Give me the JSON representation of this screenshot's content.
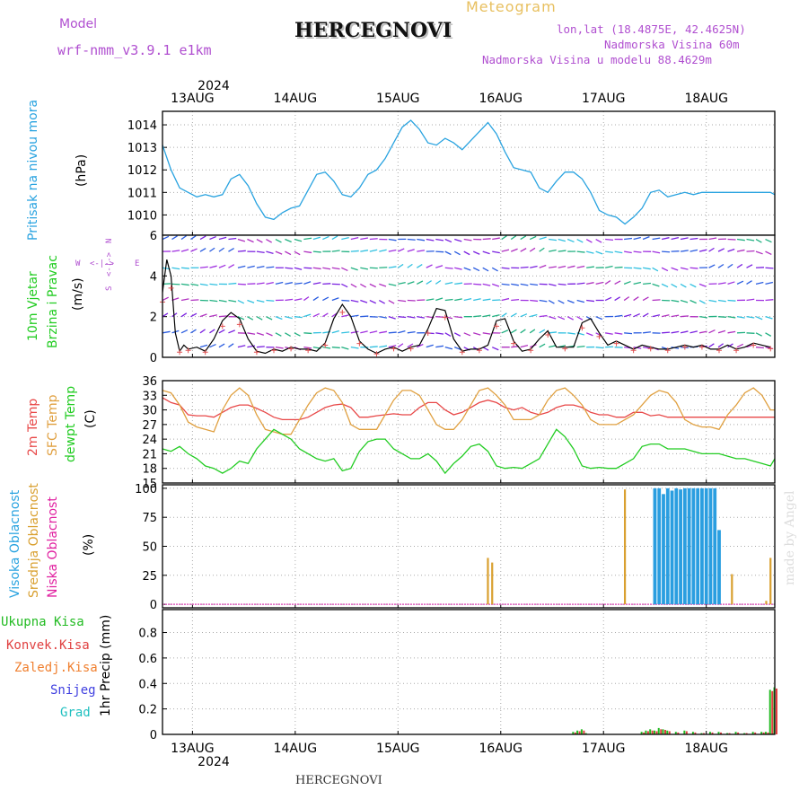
{
  "header": {
    "model_label": "Model",
    "model_value": "wrf-nmm_v3.9.1 e1km",
    "station": "HERCEGNOVI",
    "chart_kind": "Meteogram",
    "lonlat": "lon,lat (18.4875E, 42.4625N)",
    "elevation": "Nadmorska Visina 60m",
    "model_elevation": "Nadmorska Visina u modelu 88.4629m"
  },
  "footer": {
    "station": "HERCEGNOVI",
    "credit": "made by Angel"
  },
  "colors": {
    "pressure": "#29a3e0",
    "wind_black": "#000000",
    "wind_red": "#e05050",
    "t2m": "#e84848",
    "sfc": "#e0a040",
    "dew": "#22cc22",
    "cloud_high": "#2a9ee0",
    "cloud_mid": "#d9a030",
    "cloud_low": "#e020a0",
    "precip_total": "#22bb22",
    "precip_conv": "#e04040",
    "snow": "#4040e0",
    "hail": "#20c0c0",
    "grid": "#aaaaaa"
  },
  "panel_labels": {
    "pressure": {
      "name": "Pritisak na nivou mora",
      "unit": "(hPa)"
    },
    "wind": {
      "name1": "10m Vjetar",
      "name2": "Brzina i Pravac",
      "unit": "(m/s)",
      "compass_n": "N",
      "compass_s": "S",
      "compass_w": "W",
      "compass_e": "E",
      "compass_arrow_h": "<-|->",
      "compass_arrow_v": "<-|->"
    },
    "temp": {
      "t2m": "2m Temp",
      "sfc": "SFC Temp",
      "dew": "dewpt Temp",
      "unit": "(C)"
    },
    "cloud": {
      "high": "Visoka Oblacnost",
      "mid": "Srednja Oblacnost",
      "low": "Niska Oblacnost",
      "unit": "(%)"
    },
    "precip": {
      "total": "Ukupna Kisa",
      "conv": "Konvek.Kisa",
      "frozen": "Zaledj.Kisa",
      "snow": "Snijeg",
      "hail": "Grad",
      "unit": "1hr Precip (mm)"
    }
  },
  "time_axis": {
    "year": "2024",
    "days": [
      "13AUG",
      "14AUG",
      "15AUG",
      "16AUG",
      "17AUG",
      "18AUG"
    ],
    "start_hour": -7,
    "end_hour": 136
  },
  "chart_data": [
    {
      "type": "line",
      "title": "Pritisak na nivou mora",
      "ylabel": "(hPa)",
      "ylim": [
        1009.1,
        1014.6
      ],
      "yticks": [
        1010,
        1011,
        1012,
        1013,
        1014
      ],
      "x_hours_from_13AUG_00": [
        -7,
        -5,
        -3,
        -1,
        1,
        3,
        5,
        7,
        9,
        11,
        13,
        15,
        17,
        19,
        21,
        23,
        25,
        27,
        29,
        31,
        33,
        35,
        37,
        39,
        41,
        43,
        45,
        47,
        49,
        51,
        53,
        55,
        57,
        59,
        61,
        63,
        65,
        67,
        69,
        71,
        73,
        75,
        77,
        79,
        81,
        83,
        85,
        87,
        89,
        91,
        93,
        95,
        97,
        99,
        101,
        103,
        105,
        107,
        109,
        111,
        113,
        115,
        117,
        119,
        121,
        123,
        125,
        127,
        129,
        131,
        133,
        135,
        136
      ],
      "series": [
        {
          "values": [
            1013.1,
            1012.0,
            1011.2,
            1011.0,
            1010.8,
            1010.9,
            1010.8,
            1010.9,
            1011.6,
            1011.8,
            1011.3,
            1010.5,
            1009.9,
            1009.8,
            1010.1,
            1010.3,
            1010.4,
            1011.1,
            1011.8,
            1011.9,
            1011.5,
            1010.9,
            1010.8,
            1011.2,
            1011.8,
            1012.0,
            1012.5,
            1013.2,
            1013.9,
            1014.2,
            1013.8,
            1013.2,
            1013.1,
            1013.4,
            1013.2,
            1012.9,
            1013.3,
            1013.7,
            1014.1,
            1013.6,
            1012.8,
            1012.1,
            1012.0,
            1011.9,
            1011.2,
            1011.0,
            1011.5,
            1011.9,
            1011.9,
            1011.6,
            1011.0,
            1010.2,
            1010.0,
            1009.9,
            1009.6,
            1009.9,
            1010.3,
            1011.0,
            1011.1,
            1010.8,
            1010.9,
            1011.0,
            1010.9,
            1011.0,
            1011.0,
            1011.0,
            1011.0,
            1011.0,
            1011.0,
            1011.0,
            1011.0,
            1011.0,
            1010.9
          ]
        }
      ]
    },
    {
      "type": "line",
      "title": "10m Vjetar Brzina i Pravac",
      "ylabel": "(m/s)",
      "ylim": [
        0,
        6
      ],
      "yticks": [
        0,
        2,
        4,
        6
      ],
      "x_hours_from_13AUG_00": [
        -7,
        -6,
        -5,
        -4,
        -3,
        -2,
        -1,
        1,
        3,
        5,
        7,
        9,
        11,
        13,
        15,
        17,
        19,
        21,
        23,
        25,
        27,
        29,
        31,
        33,
        35,
        37,
        39,
        41,
        43,
        45,
        47,
        49,
        51,
        53,
        55,
        57,
        59,
        61,
        63,
        65,
        67,
        69,
        71,
        73,
        75,
        77,
        79,
        81,
        83,
        85,
        87,
        89,
        91,
        93,
        95,
        97,
        99,
        101,
        103,
        105,
        107,
        109,
        111,
        113,
        115,
        117,
        119,
        121,
        123,
        125,
        127,
        129,
        131,
        133,
        135
      ],
      "series": [
        {
          "values": [
            3.2,
            4.8,
            4.0,
            1.2,
            0.3,
            0.6,
            0.4,
            0.5,
            0.3,
            0.9,
            1.8,
            2.2,
            1.9,
            0.9,
            0.3,
            0.2,
            0.4,
            0.3,
            0.5,
            0.4,
            0.4,
            0.3,
            0.7,
            1.9,
            2.6,
            2.0,
            0.8,
            0.4,
            0.2,
            0.4,
            0.5,
            0.3,
            0.5,
            0.6,
            1.4,
            2.4,
            2.3,
            0.9,
            0.3,
            0.4,
            0.4,
            0.6,
            1.8,
            1.9,
            0.8,
            0.3,
            0.4,
            0.9,
            1.3,
            0.5,
            0.5,
            0.5,
            1.7,
            1.9,
            1.2,
            0.6,
            0.8,
            0.6,
            0.4,
            0.6,
            0.5,
            0.4,
            0.4,
            0.5,
            0.6,
            0.5,
            0.6,
            0.4,
            0.4,
            0.6,
            0.4,
            0.5,
            0.7,
            0.6,
            0.5
          ]
        }
      ]
    },
    {
      "type": "line",
      "title": "2m Temp / SFC Temp / dewpt Temp",
      "ylabel": "(C)",
      "ylim": [
        15,
        36
      ],
      "yticks": [
        15,
        18,
        21,
        24,
        27,
        30,
        33,
        36
      ],
      "x_hours_from_13AUG_00": [
        -7,
        -5,
        -3,
        -1,
        1,
        3,
        5,
        7,
        9,
        11,
        13,
        15,
        17,
        19,
        21,
        23,
        25,
        27,
        29,
        31,
        33,
        35,
        37,
        39,
        41,
        43,
        45,
        47,
        49,
        51,
        53,
        55,
        57,
        59,
        61,
        63,
        65,
        67,
        69,
        71,
        73,
        75,
        77,
        79,
        81,
        83,
        85,
        87,
        89,
        91,
        93,
        95,
        97,
        99,
        101,
        103,
        105,
        107,
        109,
        111,
        113,
        115,
        117,
        119,
        121,
        123,
        125,
        127,
        129,
        131,
        133,
        135,
        136
      ],
      "series": [
        {
          "name": "2m Temp",
          "values": [
            32.5,
            31.5,
            31,
            29,
            28.8,
            28.8,
            28.5,
            29.5,
            30.5,
            31,
            31,
            30.3,
            29.5,
            28.5,
            28,
            28,
            28,
            28.5,
            29.5,
            30.5,
            31,
            31.2,
            30.5,
            28.5,
            28.5,
            28.8,
            29,
            29.2,
            29,
            29,
            30.5,
            31.5,
            31.5,
            30,
            29,
            29.5,
            30.5,
            31.5,
            32,
            31.5,
            30.5,
            30,
            30.5,
            29.5,
            29,
            29.5,
            30.5,
            31,
            31,
            30.5,
            29.5,
            29,
            29,
            28.5,
            28.5,
            29.5,
            29.5,
            28.8,
            29,
            28.5,
            28.5,
            28.5,
            28.5,
            28.5,
            28.5,
            28.5,
            28.5,
            28.5,
            28.5,
            28.5,
            28.5,
            28.5,
            28.5
          ]
        },
        {
          "name": "SFC Temp",
          "values": [
            34,
            33.5,
            31,
            27.5,
            26.5,
            26,
            25.5,
            30,
            33,
            34.5,
            33,
            29,
            26,
            25.5,
            25,
            25,
            28,
            31,
            33.5,
            34.5,
            34,
            31.5,
            27,
            26,
            26,
            26,
            29,
            32,
            34,
            34,
            33,
            30,
            27,
            26,
            26,
            28,
            31,
            34,
            34.5,
            33,
            31,
            28,
            28,
            28,
            29,
            32,
            34,
            34.5,
            33,
            31,
            28,
            27,
            27,
            27,
            28,
            29,
            31,
            33,
            34,
            33.5,
            31.5,
            28,
            27,
            26.5,
            26.5,
            26,
            29,
            31,
            33.5,
            34.5,
            33,
            30,
            30
          ]
        },
        {
          "name": "dewpt Temp",
          "values": [
            22,
            21.5,
            22.5,
            21,
            20,
            18.5,
            18,
            17,
            18,
            19.5,
            19,
            22,
            24,
            26,
            25,
            24,
            22,
            21,
            20,
            19.5,
            20,
            17.5,
            18,
            21.5,
            23.5,
            24,
            24,
            22,
            21,
            20,
            20,
            21,
            19.5,
            17,
            19,
            20.5,
            22.5,
            23,
            21.5,
            18.5,
            18,
            18.2,
            18,
            19,
            20,
            23,
            26,
            24.5,
            22,
            18.5,
            18,
            18.2,
            18,
            18,
            19,
            20,
            22.5,
            23,
            23,
            22,
            22,
            22,
            21.5,
            21,
            21,
            21,
            20.5,
            20,
            20,
            19.5,
            19,
            18.5,
            20
          ]
        }
      ]
    },
    {
      "type": "bar",
      "title": "Visoka / Srednja / Niska Oblacnost",
      "ylabel": "(%)",
      "ylim": [
        -3,
        103
      ],
      "yticks": [
        0,
        25,
        50,
        75,
        100
      ],
      "series": [
        {
          "name": "Visoka Oblacnost",
          "x_hours_from_13AUG_00": [
            108,
            109,
            110,
            111,
            112,
            113,
            114,
            115,
            116,
            117,
            118,
            119,
            120,
            121,
            122,
            123
          ],
          "values": [
            100,
            100,
            95,
            100,
            98,
            100,
            99,
            100,
            100,
            100,
            100,
            100,
            100,
            100,
            100,
            64
          ]
        },
        {
          "name": "Srednja Oblacnost",
          "x_hours_from_13AUG_00": [
            69,
            70,
            101,
            126,
            134,
            135
          ],
          "values": [
            40,
            36,
            99,
            26,
            3,
            40
          ]
        },
        {
          "name": "Niska Oblacnost",
          "x_hours_from_13AUG_00": [],
          "values": []
        }
      ]
    },
    {
      "type": "bar",
      "title": "1hr Precip",
      "ylabel": "1hr Precip (mm)",
      "ylim": [
        0,
        0.98
      ],
      "yticks": [
        0,
        0.2,
        0.4,
        0.6,
        0.8
      ],
      "series": [
        {
          "name": "Ukupna Kisa",
          "x_hours_from_13AUG_00": [
            89,
            90,
            91,
            92,
            105,
            106,
            107,
            108,
            109,
            110,
            111,
            113,
            115,
            117,
            119,
            121,
            123,
            125,
            127,
            129,
            131,
            133,
            134,
            135,
            136
          ],
          "values": [
            0.02,
            0.03,
            0.04,
            0.01,
            0.02,
            0.03,
            0.04,
            0.03,
            0.05,
            0.04,
            0.03,
            0.02,
            0.03,
            0.02,
            0.01,
            0.02,
            0.02,
            0.01,
            0.02,
            0.01,
            0.02,
            0.02,
            0.02,
            0.35,
            0.37
          ]
        },
        {
          "name": "Konvek.Kisa",
          "x_hours_from_13AUG_00": [
            89,
            90,
            91,
            105,
            106,
            107,
            108,
            109,
            110,
            111,
            113,
            115,
            117,
            119,
            121,
            123,
            125,
            127,
            129,
            131,
            133,
            134,
            135,
            136
          ],
          "values": [
            0.015,
            0.025,
            0.03,
            0.015,
            0.025,
            0.03,
            0.025,
            0.04,
            0.035,
            0.025,
            0.015,
            0.025,
            0.015,
            0.01,
            0.015,
            0.015,
            0.01,
            0.015,
            0.01,
            0.015,
            0.015,
            0.015,
            0.34,
            0.36
          ]
        }
      ]
    }
  ]
}
